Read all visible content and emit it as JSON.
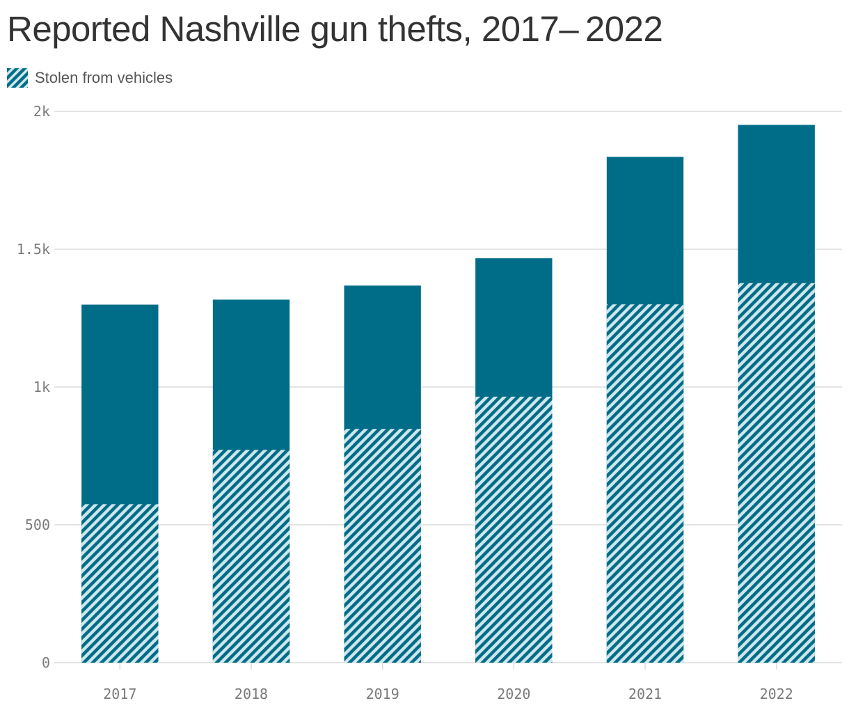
{
  "title": "Reported Nashville gun thefts, 2017– 2022",
  "legend": {
    "label": "Stolen from vehicles"
  },
  "colors": {
    "total_bar": "#006d88",
    "hatch_stripe": "#006d88",
    "hatch_bg": "#cfe6ec",
    "gridline": "#dcdcdc",
    "tick_text": "#7a7a7a"
  },
  "chart_data": {
    "type": "bar",
    "stacking": "overlay",
    "categories": [
      "2017",
      "2018",
      "2019",
      "2020",
      "2021",
      "2022"
    ],
    "series": [
      {
        "name": "Stolen from vehicles",
        "pattern": "hatched",
        "values": [
          575,
          772,
          848,
          965,
          1300,
          1377
        ]
      },
      {
        "pattern": "solid",
        "values": [
          1299,
          1317,
          1368,
          1467,
          1835,
          1951
        ]
      }
    ],
    "title": "Reported Nashville gun thefts, 2017– 2022",
    "xlabel": "",
    "ylabel": "",
    "ylim": [
      0,
      2000
    ],
    "yticks": [
      0,
      500,
      1000,
      1500,
      2000
    ],
    "ytick_labels": [
      "0",
      "500",
      "1k",
      "1.5k",
      "2k"
    ],
    "grid": true,
    "legend_position": "top-left"
  }
}
